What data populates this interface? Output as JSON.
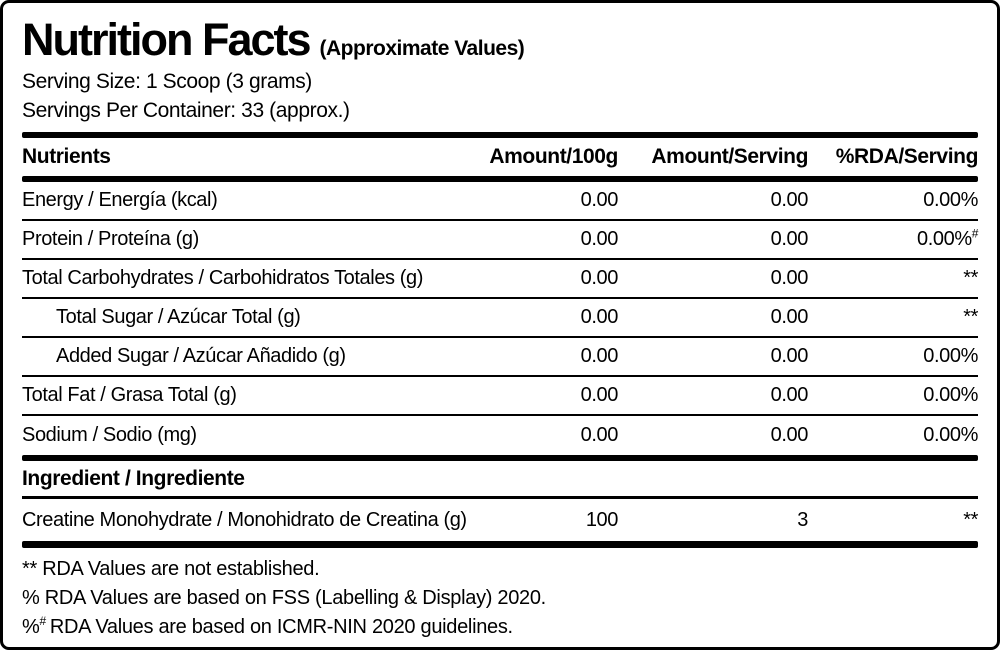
{
  "label": {
    "title": "Nutrition Facts",
    "subtitle": "(Approximate Values)",
    "serving_size": "Serving Size: 1 Scoop (3 grams)",
    "servings_per_container": "Servings Per Container: 33 (approx.)"
  },
  "colors": {
    "foreground": "#000000",
    "background": "#ffffff"
  },
  "table": {
    "columns": [
      "Nutrients",
      "Amount/100g",
      "Amount/Serving",
      "%RDA/Serving"
    ],
    "rows": [
      {
        "label": "Energy / Energía (kcal)",
        "per100g": "0.00",
        "per_serving": "0.00",
        "rda": "0.00%",
        "rda_sup": "",
        "indent": false
      },
      {
        "label": "Protein / Proteína (g)",
        "per100g": "0.00",
        "per_serving": "0.00",
        "rda": "0.00%",
        "rda_sup": "#",
        "indent": false
      },
      {
        "label": "Total Carbohydrates / Carbohidratos Totales (g)",
        "per100g": "0.00",
        "per_serving": "0.00",
        "rda": "**",
        "rda_sup": "",
        "indent": false
      },
      {
        "label": "Total Sugar / Azúcar Total (g)",
        "per100g": "0.00",
        "per_serving": "0.00",
        "rda": "**",
        "rda_sup": "",
        "indent": true
      },
      {
        "label": "Added Sugar / Azúcar Añadido (g)",
        "per100g": "0.00",
        "per_serving": "0.00",
        "rda": "0.00%",
        "rda_sup": "",
        "indent": true
      },
      {
        "label": "Total Fat / Grasa Total (g)",
        "per100g": "0.00",
        "per_serving": "0.00",
        "rda": "0.00%",
        "rda_sup": "",
        "indent": false
      },
      {
        "label": "Sodium / Sodio (mg)",
        "per100g": "0.00",
        "per_serving": "0.00",
        "rda": "0.00%",
        "rda_sup": "",
        "indent": false
      }
    ],
    "ingredient_header": "Ingredient / Ingrediente",
    "ingredient_row": {
      "label": "Creatine Monohydrate / Monohidrato de Creatina (g)",
      "per100g": "100",
      "per_serving": "3",
      "rda": "**"
    }
  },
  "footnotes": {
    "line1": "** RDA Values are not established.",
    "line2": "% RDA Values are based on FSS (Labelling & Display) 2020.",
    "line3_prefix": "%",
    "line3_sup": "#",
    "line3_text": "RDA Values are based on ICMR-NIN 2020 guidelines."
  }
}
